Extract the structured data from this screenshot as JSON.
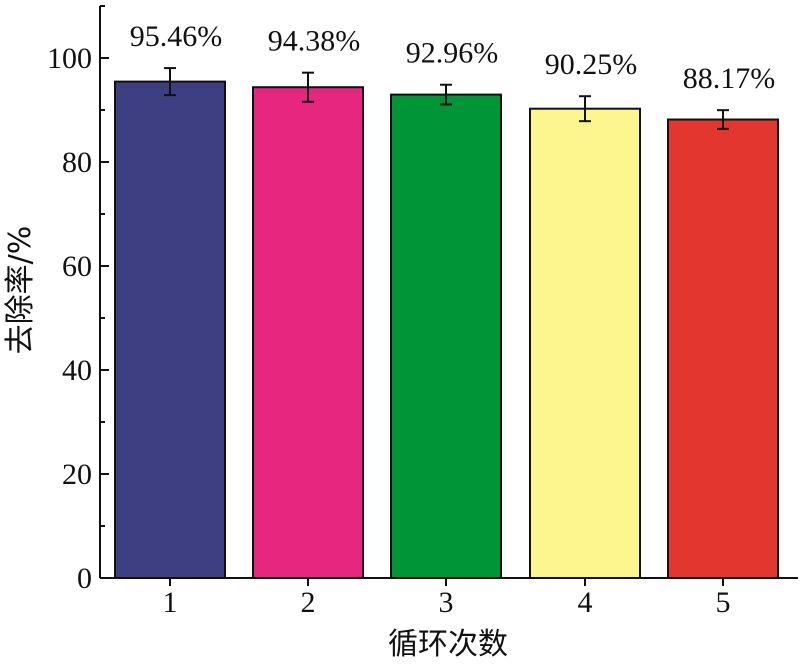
{
  "chart_data": {
    "type": "bar",
    "categories": [
      "1",
      "2",
      "3",
      "4",
      "5"
    ],
    "values": [
      95.46,
      94.38,
      92.96,
      90.25,
      88.17
    ],
    "error": [
      2.6,
      2.8,
      1.9,
      2.4,
      1.8
    ],
    "data_labels": [
      "95.46%",
      "94.38%",
      "92.96%",
      "90.25%",
      "88.17%"
    ],
    "colors": [
      "#3e3e83",
      "#e72680",
      "#009638",
      "#fdf68f",
      "#e2362e"
    ],
    "xlabel": "循环次数",
    "ylabel": "去除率/%",
    "ylim": [
      0,
      110
    ],
    "yticks": [
      0,
      20,
      40,
      60,
      80,
      100
    ],
    "grid": false,
    "title": ""
  }
}
